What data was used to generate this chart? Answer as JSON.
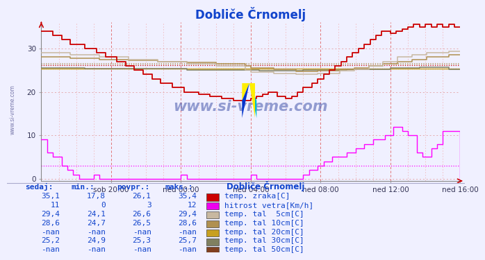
{
  "title": "Dobliče Črnomelj",
  "title_color": "#1144cc",
  "bg_color": "#f0f0ff",
  "xlim": [
    0,
    288
  ],
  "ylim": [
    -0.5,
    36
  ],
  "yticks": [
    0,
    10,
    20,
    30
  ],
  "xtick_positions": [
    48,
    96,
    144,
    192,
    240,
    288
  ],
  "xtick_labels": [
    "sob 20:00",
    "ned 00:00",
    "ned 04:00",
    "ned 08:00",
    "ned 12:00",
    "ned 16:00"
  ],
  "watermark": "www.si-vreme.com",
  "series": {
    "temp_zraka": {
      "color": "#cc0000"
    },
    "hitrost_vetra": {
      "color": "#ff00ff"
    },
    "tal_5cm": {
      "color": "#c8b8a0"
    },
    "tal_10cm": {
      "color": "#b09050"
    },
    "tal_20cm": {
      "color": "#c8a020"
    },
    "tal_30cm": {
      "color": "#808060"
    },
    "tal_50cm": {
      "color": "#804020"
    }
  },
  "avg_lines": {
    "temp_zraka": {
      "value": 26.1,
      "color": "#cc0000"
    },
    "hitrost_vetra": {
      "value": 3.0,
      "color": "#ff00ff"
    },
    "tal_5cm": {
      "value": 26.6,
      "color": "#c8b8a0"
    },
    "tal_10cm": {
      "value": 26.5,
      "color": "#b09050"
    },
    "tal_30cm": {
      "value": 25.3,
      "color": "#808060"
    }
  },
  "legend_table": {
    "headers": [
      "sedaj:",
      "min.:",
      "povpr.:",
      "maks.:"
    ],
    "station": "Dobliče Črnomelj",
    "rows": [
      [
        "35,1",
        "17,8",
        "26,1",
        "35,4",
        "#cc0000",
        "temp. zraka[C]"
      ],
      [
        "11",
        "0",
        "3",
        "12",
        "#ee00ee",
        "hitrost vetra[Km/h]"
      ],
      [
        "29,4",
        "24,1",
        "26,6",
        "29,4",
        "#c8b8a0",
        "temp. tal  5cm[C]"
      ],
      [
        "28,6",
        "24,7",
        "26,5",
        "28,6",
        "#b09050",
        "temp. tal 10cm[C]"
      ],
      [
        "-nan",
        "-nan",
        "-nan",
        "-nan",
        "#c8a020",
        "temp. tal 20cm[C]"
      ],
      [
        "25,2",
        "24,9",
        "25,3",
        "25,7",
        "#808060",
        "temp. tal 30cm[C]"
      ],
      [
        "-nan",
        "-nan",
        "-nan",
        "-nan",
        "#804020",
        "temp. tal 50cm[C]"
      ]
    ]
  }
}
